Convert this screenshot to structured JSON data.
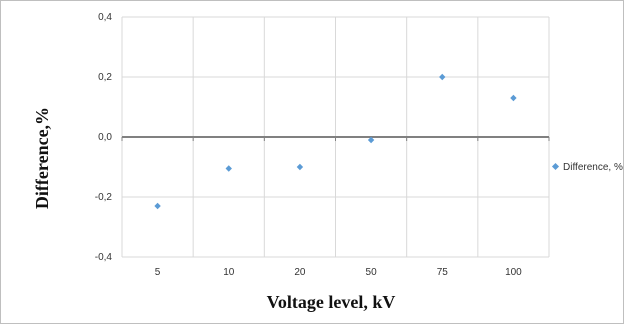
{
  "chart_data": {
    "type": "scatter",
    "categories": [
      "5",
      "10",
      "20",
      "50",
      "75",
      "100"
    ],
    "series": [
      {
        "name": "Difference, %",
        "values": [
          -0.23,
          -0.105,
          -0.1,
          -0.01,
          0.2,
          0.13
        ]
      }
    ],
    "y_tick_labels": [
      "0,4",
      "0,2",
      "0,0",
      "-0,2",
      "-0,4"
    ],
    "y_ticks": [
      0.4,
      0.2,
      0.0,
      -0.2,
      -0.4
    ],
    "ylim": [
      -0.4,
      0.4
    ],
    "xlabel": "Voltage level, kV",
    "ylabel": "Difference,%",
    "grid": true,
    "legend_position": "right",
    "colors": {
      "marker": "#5b9bd5",
      "grid": "#d9d9d9",
      "zero_axis": "#808080",
      "frame": "#bfbfbf"
    }
  }
}
